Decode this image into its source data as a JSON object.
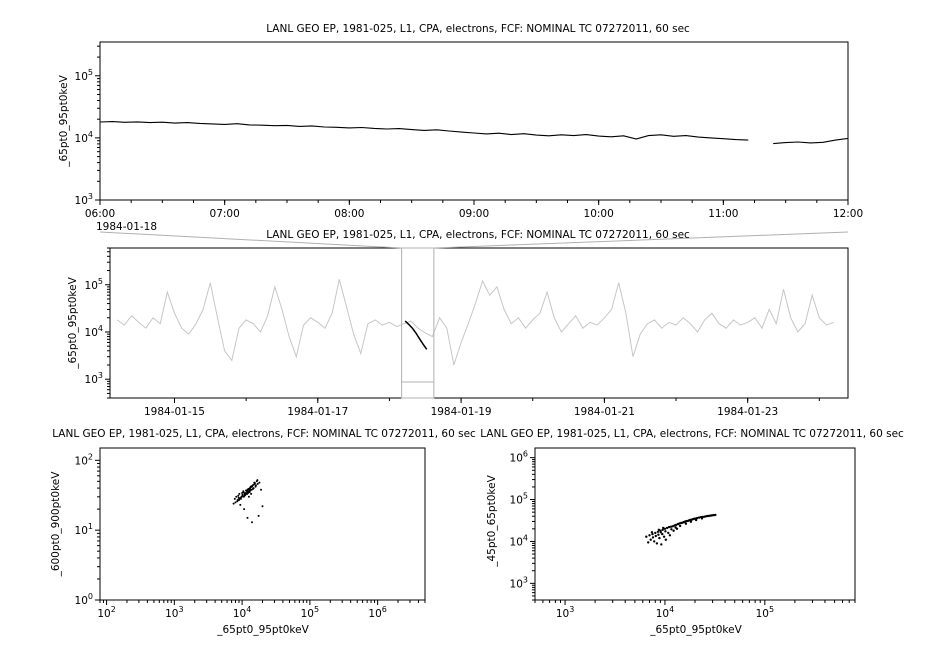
{
  "app": {
    "background": "#ffffff",
    "foreground": "#000000",
    "context_series_color": "#c6c6c6",
    "selection_color": "#b0b0b0"
  },
  "chart_data": [
    {
      "name": "detail-timeseries",
      "type": "line",
      "title": "LANL GEO EP, 1981-025, L1, CPA, electrons, FCF: NOMINAL TC 07272011, 60 sec",
      "ylabel": "_65pt0_95pt0keV",
      "xlabel": "",
      "date_label": "1984-01-18",
      "x_unit": "hours of 1984-01-18",
      "xscale": "linear",
      "xlim": [
        6,
        12
      ],
      "x_minor_step": 0.25,
      "xticks": [
        {
          "v": 6,
          "label": "06:00"
        },
        {
          "v": 7,
          "label": "07:00"
        },
        {
          "v": 8,
          "label": "08:00"
        },
        {
          "v": 9,
          "label": "09:00"
        },
        {
          "v": 10,
          "label": "10:00"
        },
        {
          "v": 11,
          "label": "11:00"
        },
        {
          "v": 12,
          "label": "12:00"
        }
      ],
      "yscale": "log",
      "ylim": [
        1000,
        350000
      ],
      "ytick_exponents": [
        3,
        4,
        5
      ],
      "series": [
        {
          "name": "electron-flux-65-95keV",
          "color": "#000000",
          "width": 1.1,
          "x_start": 6,
          "x_step": 0.1,
          "y": [
            18000,
            18300,
            17800,
            18100,
            17600,
            17900,
            17300,
            17600,
            17100,
            16800,
            16500,
            16900,
            16200,
            16000,
            15700,
            15900,
            15300,
            15600,
            15000,
            14800,
            14500,
            14700,
            14200,
            13900,
            14100,
            13600,
            13200,
            13500,
            12900,
            12400,
            12000,
            11600,
            11900,
            11300,
            11700,
            11100,
            10800,
            11200,
            10900,
            11300,
            10700,
            10400,
            10800,
            9600,
            10900,
            11200,
            10600,
            10900,
            10300,
            10000,
            9700,
            9400,
            9200,
            null,
            8100,
            8400,
            8600,
            8300,
            8500,
            9200,
            9800
          ]
        }
      ]
    },
    {
      "name": "context-timeseries",
      "type": "line",
      "title": "LANL GEO EP, 1981-025, L1, CPA, electrons, FCF: NOMINAL TC 07272011, 60 sec",
      "ylabel": "_65pt0_95pt0keV",
      "xlabel": "",
      "x_unit": "day of 1984-01",
      "xscale": "linear",
      "xlim": [
        14.1,
        24.4
      ],
      "x_minor_step": 1,
      "xticks": [
        {
          "v": 15,
          "label": "1984-01-15"
        },
        {
          "v": 17,
          "label": "1984-01-17"
        },
        {
          "v": 19,
          "label": "1984-01-19"
        },
        {
          "v": 21,
          "label": "1984-01-21"
        },
        {
          "v": 23,
          "label": "1984-01-23"
        }
      ],
      "yscale": "log",
      "ylim": [
        400,
        600000
      ],
      "ytick_exponents": [
        3,
        4,
        5
      ],
      "selection": {
        "x0": 18.17,
        "x1": 18.62,
        "color": "#b0b0b0"
      },
      "series": [
        {
          "name": "context-flux-65-95keV",
          "color": "#c6c6c6",
          "width": 1,
          "x_start": 14.2,
          "x_step": 0.1,
          "y": [
            18000,
            14000,
            22000,
            16000,
            12000,
            20000,
            15000,
            70000,
            25000,
            12000,
            9000,
            15000,
            30000,
            110000,
            20000,
            4000,
            2500,
            12000,
            18000,
            15000,
            10000,
            22000,
            90000,
            30000,
            8000,
            3000,
            14000,
            20000,
            16000,
            12000,
            25000,
            130000,
            35000,
            9000,
            3500,
            15000,
            18000,
            14000,
            16000,
            13000,
            15000,
            17000,
            12000,
            9500,
            8000,
            20000,
            12000,
            2000,
            6000,
            15000,
            40000,
            120000,
            60000,
            90000,
            30000,
            15000,
            20000,
            12000,
            18000,
            25000,
            70000,
            20000,
            10000,
            15000,
            22000,
            12000,
            16000,
            14000,
            20000,
            30000,
            110000,
            25000,
            3000,
            9000,
            15000,
            18000,
            12000,
            16000,
            14000,
            20000,
            15000,
            10000,
            18000,
            25000,
            15000,
            12000,
            18000,
            14000,
            16000,
            20000,
            12000,
            30000,
            15000,
            80000,
            20000,
            10000,
            15000,
            60000,
            20000,
            14000,
            16000
          ]
        },
        {
          "name": "highlighted-interval-flux",
          "color": "#000000",
          "width": 1.5,
          "x": [
            18.22,
            18.27,
            18.32,
            18.37,
            18.42,
            18.47,
            18.52
          ],
          "y": [
            17000,
            14500,
            12000,
            9500,
            7200,
            5500,
            4300
          ]
        }
      ]
    },
    {
      "name": "scatter-600-900",
      "type": "scatter",
      "title": "LANL GEO EP, 1981-025, L1, CPA, electrons, FCF: NOMINAL TC 07272011, 60 sec",
      "xlabel": "_65pt0_95pt0keV",
      "ylabel": "_600pt0_900pt0keV",
      "xscale": "log",
      "xlim": [
        80,
        5000000
      ],
      "xtick_exponents": [
        2,
        3,
        4,
        5,
        6
      ],
      "yscale": "log",
      "ylim": [
        1,
        150
      ],
      "ytick_exponents": [
        0,
        1,
        2
      ],
      "marker_radius": 1,
      "points": [
        [
          8200,
          30
        ],
        [
          9100,
          33
        ],
        [
          10500,
          35
        ],
        [
          12000,
          38
        ],
        [
          11000,
          32
        ],
        [
          9500,
          29
        ],
        [
          8800,
          31
        ],
        [
          10000,
          34
        ],
        [
          13000,
          40
        ],
        [
          14000,
          42
        ],
        [
          12500,
          36
        ],
        [
          11500,
          33
        ],
        [
          10200,
          31
        ],
        [
          9000,
          27
        ],
        [
          8500,
          26
        ],
        [
          7800,
          28
        ],
        [
          9800,
          30
        ],
        [
          10800,
          33
        ],
        [
          11800,
          35
        ],
        [
          12800,
          38
        ],
        [
          13500,
          41
        ],
        [
          15000,
          45
        ],
        [
          16000,
          44
        ],
        [
          14500,
          39
        ],
        [
          13200,
          37
        ],
        [
          12200,
          34
        ],
        [
          11200,
          32
        ],
        [
          10600,
          30
        ],
        [
          9600,
          28
        ],
        [
          8900,
          29
        ],
        [
          10100,
          32
        ],
        [
          11100,
          34
        ],
        [
          12100,
          36
        ],
        [
          13100,
          39
        ],
        [
          14100,
          43
        ],
        [
          15500,
          47
        ],
        [
          16500,
          50
        ],
        [
          17000,
          46
        ],
        [
          15800,
          42
        ],
        [
          14800,
          40
        ],
        [
          13800,
          38
        ],
        [
          12900,
          35
        ],
        [
          11900,
          33
        ],
        [
          10900,
          31
        ],
        [
          9900,
          30
        ],
        [
          9200,
          28
        ],
        [
          8600,
          27
        ],
        [
          8000,
          25
        ],
        [
          7500,
          24
        ],
        [
          10400,
          36
        ],
        [
          11400,
          37
        ],
        [
          12400,
          39
        ],
        [
          13400,
          42
        ],
        [
          14400,
          44
        ],
        [
          15200,
          48
        ],
        [
          12600,
          30
        ],
        [
          13600,
          33
        ],
        [
          16800,
          52
        ],
        [
          18000,
          48
        ],
        [
          19000,
          38
        ],
        [
          20000,
          22
        ],
        [
          17500,
          16
        ],
        [
          9400,
          23
        ],
        [
          10700,
          20
        ],
        [
          12000,
          15
        ],
        [
          14000,
          13
        ]
      ]
    },
    {
      "name": "scatter-45-65",
      "type": "scatter",
      "title": "LANL GEO EP, 1981-025, L1, CPA, electrons, FCF: NOMINAL TC 07272011, 60 sec",
      "xlabel": "_65pt0_95pt0keV",
      "ylabel": "_45pt0_65pt0keV",
      "xscale": "log",
      "xlim": [
        500,
        800000
      ],
      "xtick_exponents": [
        3,
        4,
        5
      ],
      "yscale": "log",
      "ylim": [
        400,
        1700000
      ],
      "ytick_exponents": [
        3,
        4,
        5,
        6
      ],
      "marker_radius": 1.2,
      "points": [
        [
          6500,
          13000
        ],
        [
          7000,
          14000
        ],
        [
          7500,
          15000
        ],
        [
          8000,
          16000
        ],
        [
          8500,
          17000
        ],
        [
          9000,
          18000
        ],
        [
          9500,
          19000
        ],
        [
          10000,
          20000
        ],
        [
          10500,
          21000
        ],
        [
          11000,
          22000
        ],
        [
          11500,
          22500
        ],
        [
          12000,
          23000
        ],
        [
          12500,
          24000
        ],
        [
          13000,
          25000
        ],
        [
          13500,
          26000
        ],
        [
          14000,
          27000
        ],
        [
          14500,
          27500
        ],
        [
          15000,
          28000
        ],
        [
          15500,
          29000
        ],
        [
          16000,
          30000
        ],
        [
          16500,
          30500
        ],
        [
          17000,
          31000
        ],
        [
          17500,
          32000
        ],
        [
          18000,
          32500
        ],
        [
          18500,
          33000
        ],
        [
          19000,
          34000
        ],
        [
          19500,
          34500
        ],
        [
          20000,
          35000
        ],
        [
          21000,
          36000
        ],
        [
          22000,
          37000
        ],
        [
          23000,
          38000
        ],
        [
          24000,
          38500
        ],
        [
          25000,
          39000
        ],
        [
          26000,
          40000
        ],
        [
          27000,
          40500
        ],
        [
          28000,
          41000
        ],
        [
          29000,
          41500
        ],
        [
          30000,
          42000
        ],
        [
          31000,
          42500
        ],
        [
          32000,
          43000
        ],
        [
          7200,
          11000
        ],
        [
          7800,
          10000
        ],
        [
          8300,
          9000
        ],
        [
          9200,
          8500
        ],
        [
          8800,
          12000
        ],
        [
          9800,
          13000
        ],
        [
          10200,
          11000
        ],
        [
          11200,
          14000
        ],
        [
          6800,
          9500
        ],
        [
          7600,
          12500
        ],
        [
          8100,
          13500
        ],
        [
          9400,
          15000
        ],
        [
          10800,
          16000
        ],
        [
          12200,
          18000
        ],
        [
          13200,
          20000
        ],
        [
          8600,
          14500
        ],
        [
          9100,
          16500
        ],
        [
          10100,
          17500
        ],
        [
          7400,
          16500
        ],
        [
          8700,
          19000
        ],
        [
          9600,
          21000
        ],
        [
          11600,
          19500
        ],
        [
          12800,
          21500
        ],
        [
          14200,
          23500
        ],
        [
          16200,
          26500
        ],
        [
          18200,
          29500
        ],
        [
          20500,
          32500
        ],
        [
          23500,
          35500
        ]
      ]
    }
  ]
}
